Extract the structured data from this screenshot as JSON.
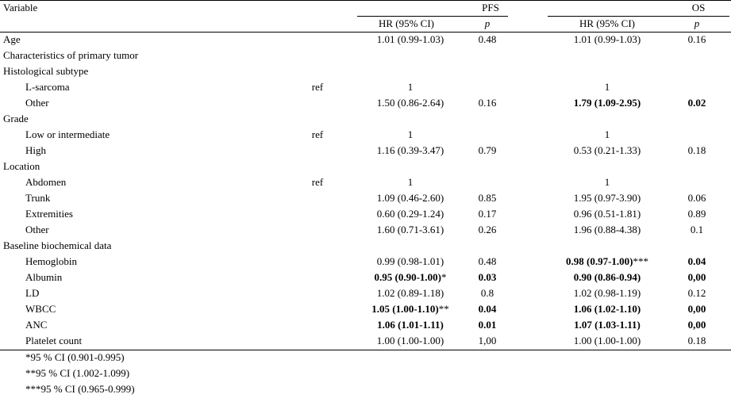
{
  "table": {
    "header": {
      "variable": "Variable",
      "pfs": "PFS",
      "os": "OS",
      "hr": "HR (95% CI)",
      "p": "p"
    },
    "rows": [
      {
        "label": "Age",
        "pfs_hr": "1.01 (0.99-1.03)",
        "pfs_p": "0.48",
        "os_hr": "1.01 (0.99-1.03)",
        "os_p": "0.16"
      },
      {
        "label": "Characteristics of primary tumor"
      },
      {
        "label": "Histological subtype"
      },
      {
        "label": "L-sarcoma",
        "indent": true,
        "ref": "ref",
        "pfs_hr": "1",
        "os_hr": "1"
      },
      {
        "label": "Other",
        "indent": true,
        "pfs_hr": "1.50 (0.86-2.64)",
        "pfs_p": "0.16",
        "os_hr": "1.79 (1.09-2.95)",
        "os_p": "0.02",
        "bold": [
          "os_hr",
          "os_p"
        ]
      },
      {
        "label": "Grade"
      },
      {
        "label": "Low or intermediate",
        "indent": true,
        "ref": "ref",
        "pfs_hr": "1",
        "os_hr": "1"
      },
      {
        "label": "High",
        "indent": true,
        "pfs_hr": "1.16 (0.39-3.47)",
        "pfs_p": "0.79",
        "os_hr": "0.53 (0.21-1.33)",
        "os_p": "0.18"
      },
      {
        "label": "Location"
      },
      {
        "label": "Abdomen",
        "indent": true,
        "ref": "ref",
        "pfs_hr": "1",
        "os_hr": "1"
      },
      {
        "label": "Trunk",
        "indent": true,
        "pfs_hr": "1.09 (0.46-2.60)",
        "pfs_p": "0.85",
        "os_hr": "1.95 (0.97-3.90)",
        "os_p": "0.06"
      },
      {
        "label": "Extremities",
        "indent": true,
        "pfs_hr": "0.60 (0.29-1.24)",
        "pfs_p": "0.17",
        "os_hr": "0.96 (0.51-1.81)",
        "os_p": "0.89"
      },
      {
        "label": "Other",
        "indent": true,
        "pfs_hr": "1.60 (0.71-3.61)",
        "pfs_p": "0.26",
        "os_hr": "1.96 (0.88-4.38)",
        "os_p": "0.1"
      },
      {
        "label": "Baseline biochemical data"
      },
      {
        "label": "Hemoglobin",
        "indent": true,
        "pfs_hr": "0.99 (0.98-1.01)",
        "pfs_p": "0.48",
        "os_hr": "0.98 (0.97-1.00)",
        "os_p": "0.04",
        "bold": [
          "os_hr",
          "os_p"
        ],
        "notes": {
          "os_hr": "***"
        }
      },
      {
        "label": "Albumin",
        "indent": true,
        "pfs_hr": "0.95 (0.90-1.00)",
        "pfs_p": "0.03",
        "os_hr": "0.90 (0.86-0.94)",
        "os_p": "0,00",
        "bold": [
          "pfs_hr",
          "pfs_p",
          "os_hr",
          "os_p"
        ],
        "notes": {
          "pfs_hr": "*"
        }
      },
      {
        "label": "LD",
        "indent": true,
        "pfs_hr": "1.02 (0.89-1.18)",
        "pfs_p": "0.8",
        "os_hr": "1.02 (0.98-1.19)",
        "os_p": "0.12"
      },
      {
        "label": "WBCC",
        "indent": true,
        "pfs_hr": "1.05 (1.00-1.10)",
        "pfs_p": "0.04",
        "os_hr": "1.06 (1.02-1.10)",
        "os_p": "0,00",
        "bold": [
          "pfs_hr",
          "pfs_p",
          "os_hr",
          "os_p"
        ],
        "notes": {
          "pfs_hr": "**"
        }
      },
      {
        "label": "ANC",
        "indent": true,
        "pfs_hr": "1.06 (1.01-1.11)",
        "pfs_p": "0.01",
        "os_hr": "1.07 (1.03-1.11)",
        "os_p": "0,00",
        "bold": [
          "pfs_hr",
          "pfs_p",
          "os_hr",
          "os_p"
        ]
      },
      {
        "label": "Platelet count",
        "indent": true,
        "pfs_hr": "1.00 (1.00-1.00)",
        "pfs_p": "1,00",
        "os_hr": "1.00 (1.00-1.00)",
        "os_p": "0.18"
      }
    ],
    "footnotes": [
      "*95 % CI (0.901-0.995)",
      "**95 % CI (1.002-1.099)",
      "***95 % CI (0.965-0.999)"
    ]
  }
}
